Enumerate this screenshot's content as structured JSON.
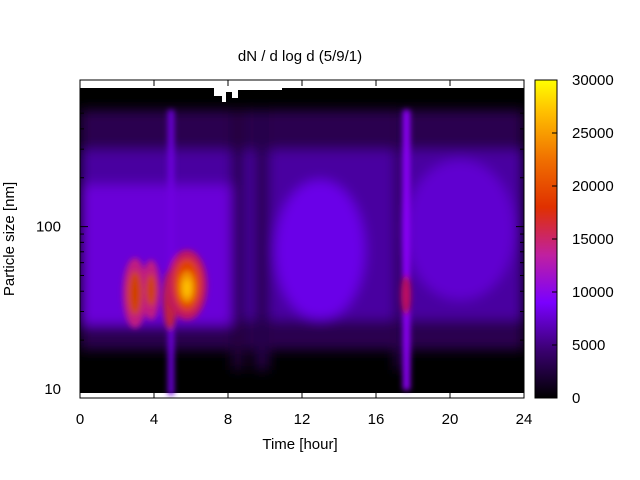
{
  "chart_data": {
    "type": "heatmap",
    "title": "dN / d log d (5/9/1)",
    "xlabel": "Time [hour]",
    "ylabel": "Particle size [nm]",
    "xlim": [
      0,
      24
    ],
    "ylim": [
      8.8,
      800
    ],
    "y_scale": "log",
    "x_ticks": [
      "0",
      "4",
      "8",
      "12",
      "16",
      "20",
      "24"
    ],
    "x_tick_values": [
      0,
      4,
      8,
      12,
      16,
      20,
      24
    ],
    "y_ticks": [
      "10",
      "100"
    ],
    "y_tick_values": [
      10,
      100
    ],
    "colorbar": {
      "range": [
        0,
        30000
      ],
      "ticks": [
        "0",
        "5000",
        "10000",
        "15000",
        "20000",
        "25000",
        "30000"
      ],
      "tick_values": [
        0,
        5000,
        10000,
        15000,
        20000,
        25000,
        30000
      ],
      "colormap": "black-purple-red-orange-yellow"
    },
    "features": [
      {
        "time": 3.0,
        "size_nm": 42,
        "value": 17000
      },
      {
        "time": 3.8,
        "size_nm": 42,
        "value": 14000
      },
      {
        "time": 4.8,
        "size_nm": 42,
        "value": 12000
      },
      {
        "time": 5.8,
        "size_nm": 45,
        "value": 23000
      },
      {
        "time": 12.3,
        "size_nm": 80,
        "value": 7000
      },
      {
        "time": 17.6,
        "size_nm": 45,
        "value": 9000
      },
      {
        "time": 20.5,
        "size_nm": 100,
        "value": 6500
      }
    ]
  },
  "colors": {
    "low": "#000000",
    "mid": "#8000ff",
    "high": "#ff8000",
    "max": "#ffff00"
  }
}
